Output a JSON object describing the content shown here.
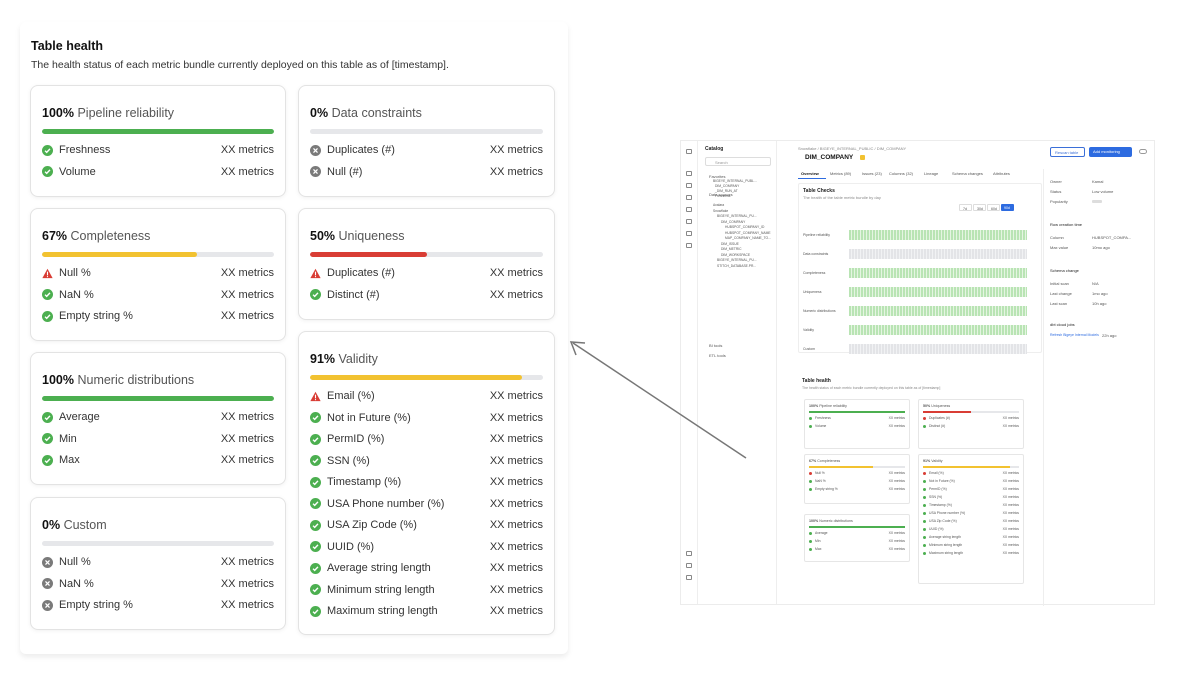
{
  "section": {
    "title": "Table health",
    "subtitle": "The health status of each metric bundle currently deployed on this table as of [timestamp]."
  },
  "colors": {
    "green": "#4caf50",
    "yellow": "#f2c230",
    "red": "#d93d35",
    "gray": "#7a7a7a",
    "bar_track": "#e6e7ea"
  },
  "cards": [
    {
      "id": "pipeline",
      "pct": "100%",
      "name": "Pipeline reliability",
      "progress": 1.0,
      "bar_color": "green",
      "rows": [
        {
          "label": "Freshness",
          "value": "XX metrics",
          "status": "ok"
        },
        {
          "label": "Volume",
          "value": "XX metrics",
          "status": "ok"
        }
      ]
    },
    {
      "id": "constraints",
      "pct": "0%",
      "name": "Data constraints",
      "progress": 0.0,
      "bar_color": "gray",
      "rows": [
        {
          "label": "Duplicates (#)",
          "value": "XX metrics",
          "status": "off"
        },
        {
          "label": "Null (#)",
          "value": "XX metrics",
          "status": "off"
        }
      ]
    },
    {
      "id": "completeness",
      "pct": "67%",
      "name": "Completeness",
      "progress": 0.67,
      "bar_color": "yellow",
      "rows": [
        {
          "label": "Null %",
          "value": "XX metrics",
          "status": "warn"
        },
        {
          "label": "NaN %",
          "value": "XX metrics",
          "status": "ok"
        },
        {
          "label": "Empty string %",
          "value": "XX metrics",
          "status": "ok"
        }
      ]
    },
    {
      "id": "uniqueness",
      "pct": "50%",
      "name": "Uniqueness",
      "progress": 0.5,
      "bar_color": "red",
      "rows": [
        {
          "label": "Duplicates (#)",
          "value": "XX metrics",
          "status": "warn"
        },
        {
          "label": "Distinct (#)",
          "value": "XX metrics",
          "status": "ok"
        }
      ]
    },
    {
      "id": "numeric",
      "pct": "100%",
      "name": "Numeric distributions",
      "progress": 1.0,
      "bar_color": "green",
      "rows": [
        {
          "label": "Average",
          "value": "XX metrics",
          "status": "ok"
        },
        {
          "label": "Min",
          "value": "XX metrics",
          "status": "ok"
        },
        {
          "label": "Max",
          "value": "XX metrics",
          "status": "ok"
        }
      ]
    },
    {
      "id": "validity",
      "pct": "91%",
      "name": "Validity",
      "progress": 0.91,
      "bar_color": "yellow",
      "rows": [
        {
          "label": "Email (%)",
          "value": "XX metrics",
          "status": "warn"
        },
        {
          "label": "Not in Future (%)",
          "value": "XX metrics",
          "status": "ok"
        },
        {
          "label": "PermID (%)",
          "value": "XX metrics",
          "status": "ok"
        },
        {
          "label": "SSN (%)",
          "value": "XX metrics",
          "status": "ok"
        },
        {
          "label": "Timestamp (%)",
          "value": "XX metrics",
          "status": "ok"
        },
        {
          "label": "USA Phone number (%)",
          "value": "XX metrics",
          "status": "ok"
        },
        {
          "label": "USA Zip Code (%)",
          "value": "XX metrics",
          "status": "ok"
        },
        {
          "label": "UUID (%)",
          "value": "XX metrics",
          "status": "ok"
        },
        {
          "label": "Average string length",
          "value": "XX metrics",
          "status": "ok"
        },
        {
          "label": "Minimum string length",
          "value": "XX metrics",
          "status": "ok"
        },
        {
          "label": "Maximum string length",
          "value": "XX metrics",
          "status": "ok"
        }
      ]
    },
    {
      "id": "custom",
      "pct": "0%",
      "name": "Custom",
      "progress": 0.0,
      "bar_color": "gray",
      "rows": [
        {
          "label": "Null %",
          "value": "XX metrics",
          "status": "off"
        },
        {
          "label": "NaN %",
          "value": "XX metrics",
          "status": "off"
        },
        {
          "label": "Empty string %",
          "value": "XX metrics",
          "status": "off"
        }
      ]
    }
  ],
  "mini": {
    "catalog": "Catalog",
    "search": "Search",
    "favorites": "Favorites",
    "data_sources": "Data sources",
    "bi_tools": "BI tools",
    "etl_tools": "ETL tools",
    "tree": [
      "BIGEYE_INTERNAL_PUBL...",
      "DIM_COMPANY",
      "_DIM_RUN_AT",
      "Freshness",
      "Avalara",
      "Snowflake",
      "BIGEYE_INTERNAL_PU...",
      "DIM_COMPANY",
      "HUBSPOT_COMPANY_ID",
      "HUBSPOT_COMPANY_NAME",
      "MAP_COMPANY_NAME_TO...",
      "DIM_ISSUE",
      "DIM_METRIC",
      "DIM_WORKSPACE",
      "BIGEYE_INTERNAL_PU...",
      "STITCH_DATABASE.PR..."
    ],
    "breadcrumb": "Snowflake / BIGEYE_INTERNAL_PUBLIC / DIM_COMPANY",
    "table_name": "DIM_COMPANY",
    "btn_rescan": "Rescan table",
    "btn_monitor": "Add monitoring",
    "tabs": [
      "Overview",
      "Metrics (89)",
      "Issues (23)",
      "Columns (32)",
      "Lineage",
      "Schema changes",
      "Attributes"
    ],
    "checks_title": "Table Checks",
    "checks_sub": "The health of the table metric bundle by day",
    "ranges": [
      "7d",
      "30d",
      "60d",
      "90d"
    ],
    "checks": [
      "Pipeline reliability",
      "Data constraints",
      "Completeness",
      "Uniqueness",
      "Numeric distributions",
      "Validity",
      "Custom"
    ],
    "health_title": "Table health",
    "health_sub": "The health status of each metric bundle currently deployed on this table as of [timestamp]",
    "side": {
      "owner_label": "Owner",
      "owner_value": "Kamal",
      "status_label": "Status",
      "status_value": "Low volume",
      "pop_label": "Popularity",
      "row_creation": "Row creation time",
      "column_label": "Column",
      "column_value": "HUBSPOT_COMPA...",
      "max_label": "Max value",
      "max_value": "10mo ago",
      "schema_change": "Schema change",
      "initial_label": "Initial scan",
      "initial_value": "N/A",
      "last_change_label": "Last change",
      "last_change_value": "1mo ago",
      "last_scan_label": "Last scan",
      "last_scan_value": "10h ago",
      "dbt_label": "dbt cloud jobs",
      "dbt_link": "Refresh Bigeye Internal Models",
      "dbt_time": "22h ago"
    }
  }
}
